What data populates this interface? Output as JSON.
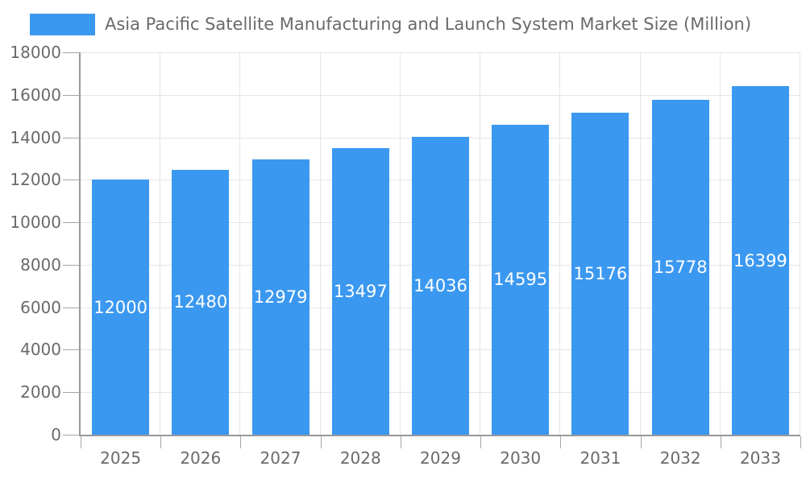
{
  "legend": {
    "label": "Asia Pacific Satellite Manufacturing and Launch System Market Size (Million)"
  },
  "colors": {
    "bar": "#3B98F0",
    "bar_label_text": "#FFFFFF",
    "axis_line": "#999999",
    "tick_mark": "#A6A6A6",
    "grid_line": "#E5E5E5",
    "tick_text": "#6A6A6A",
    "title_text": "#6A6A6A",
    "background": "#FFFFFF"
  },
  "chart_data": {
    "type": "bar",
    "title": "Asia Pacific Satellite Manufacturing and Launch System Market Size (Million)",
    "series_name": "Asia Pacific Satellite Manufacturing and Launch System Market Size (Million)",
    "categories": [
      "2025",
      "2026",
      "2027",
      "2028",
      "2029",
      "2030",
      "2031",
      "2032",
      "2033"
    ],
    "values": [
      12000,
      12480,
      12979,
      13497,
      14036,
      14595,
      15176,
      15778,
      16399
    ],
    "xlabel": "",
    "ylabel": "",
    "ylim": [
      0,
      18000
    ],
    "yticks": [
      0,
      2000,
      4000,
      6000,
      8000,
      10000,
      12000,
      14000,
      16000,
      18000
    ],
    "grid": true,
    "grid_vertical": true,
    "legend_position": "top-left",
    "value_label_position": "inside-center"
  }
}
